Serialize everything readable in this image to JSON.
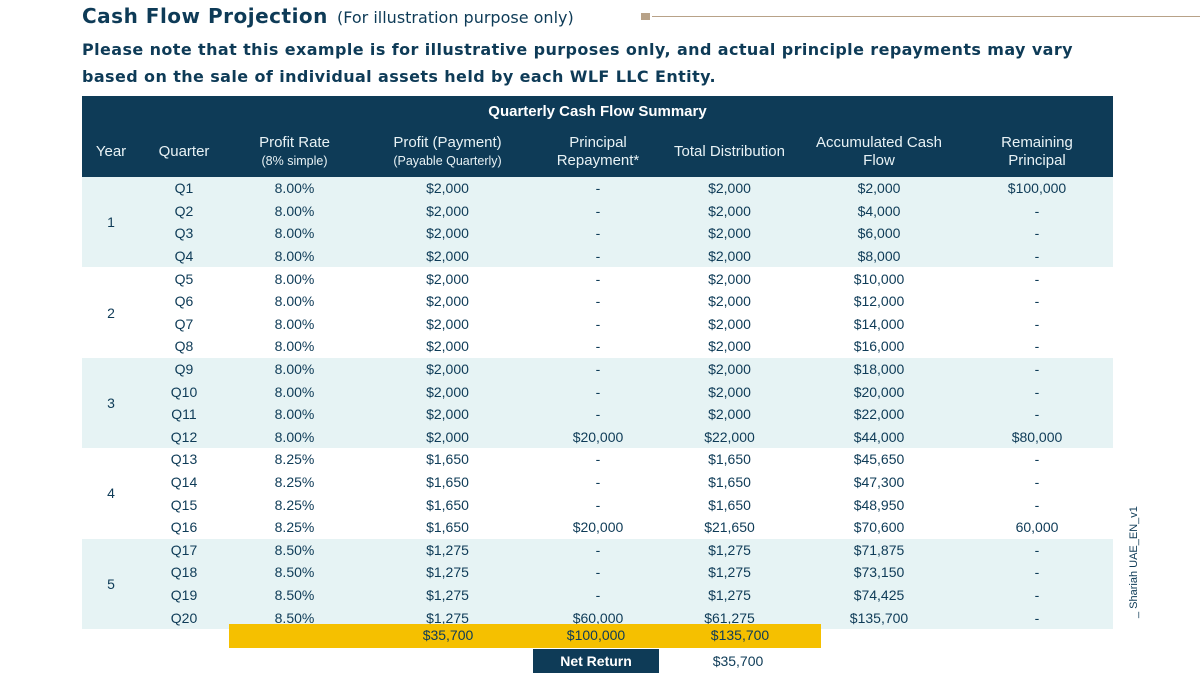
{
  "title": {
    "main": "Cash Flow Projection",
    "sub": "(For illustration purpose only)"
  },
  "note": "Please note that this example is for illustrative purposes only, and actual principle repayments may vary based on the sale of individual assets held by each WLF LLC Entity.",
  "table": {
    "summary_title": "Quarterly Cash Flow Summary",
    "headers": {
      "year": "Year",
      "quarter": "Quarter",
      "profit_rate": "Profit Rate",
      "profit_rate_sub": "(8% simple)",
      "profit_payment": "Profit (Payment)",
      "profit_payment_sub": "(Payable Quarterly)",
      "principal_repayment_1": "Principal",
      "principal_repayment_2": "Repayment*",
      "total_distribution": "Total Distribution",
      "accumulated_1": "Accumulated Cash",
      "accumulated_2": "Flow",
      "remaining_1": "Remaining",
      "remaining_2": "Principal"
    },
    "years": [
      "1",
      "2",
      "3",
      "4",
      "5"
    ],
    "rows": [
      {
        "quarter": "Q1",
        "rate": "8.00%",
        "profit": "$2,000",
        "principal": "-",
        "total": "$2,000",
        "accumulated": "$2,000",
        "remaining": "$100,000"
      },
      {
        "quarter": "Q2",
        "rate": "8.00%",
        "profit": "$2,000",
        "principal": "-",
        "total": "$2,000",
        "accumulated": "$4,000",
        "remaining": "-"
      },
      {
        "quarter": "Q3",
        "rate": "8.00%",
        "profit": "$2,000",
        "principal": "-",
        "total": "$2,000",
        "accumulated": "$6,000",
        "remaining": "-"
      },
      {
        "quarter": "Q4",
        "rate": "8.00%",
        "profit": "$2,000",
        "principal": "-",
        "total": "$2,000",
        "accumulated": "$8,000",
        "remaining": "-"
      },
      {
        "quarter": "Q5",
        "rate": "8.00%",
        "profit": "$2,000",
        "principal": "-",
        "total": "$2,000",
        "accumulated": "$10,000",
        "remaining": "-"
      },
      {
        "quarter": "Q6",
        "rate": "8.00%",
        "profit": "$2,000",
        "principal": "-",
        "total": "$2,000",
        "accumulated": "$12,000",
        "remaining": "-"
      },
      {
        "quarter": "Q7",
        "rate": "8.00%",
        "profit": "$2,000",
        "principal": "-",
        "total": "$2,000",
        "accumulated": "$14,000",
        "remaining": "-"
      },
      {
        "quarter": "Q8",
        "rate": "8.00%",
        "profit": "$2,000",
        "principal": "-",
        "total": "$2,000",
        "accumulated": "$16,000",
        "remaining": "-"
      },
      {
        "quarter": "Q9",
        "rate": "8.00%",
        "profit": "$2,000",
        "principal": "-",
        "total": "$2,000",
        "accumulated": "$18,000",
        "remaining": "-"
      },
      {
        "quarter": "Q10",
        "rate": "8.00%",
        "profit": "$2,000",
        "principal": "-",
        "total": "$2,000",
        "accumulated": "$20,000",
        "remaining": "-"
      },
      {
        "quarter": "Q11",
        "rate": "8.00%",
        "profit": "$2,000",
        "principal": "-",
        "total": "$2,000",
        "accumulated": "$22,000",
        "remaining": "-"
      },
      {
        "quarter": "Q12",
        "rate": "8.00%",
        "profit": "$2,000",
        "principal": "$20,000",
        "total": "$22,000",
        "accumulated": "$44,000",
        "remaining": "$80,000"
      },
      {
        "quarter": "Q13",
        "rate": "8.25%",
        "profit": "$1,650",
        "principal": "-",
        "total": "$1,650",
        "accumulated": "$45,650",
        "remaining": "-"
      },
      {
        "quarter": "Q14",
        "rate": "8.25%",
        "profit": "$1,650",
        "principal": "-",
        "total": "$1,650",
        "accumulated": "$47,300",
        "remaining": "-"
      },
      {
        "quarter": "Q15",
        "rate": "8.25%",
        "profit": "$1,650",
        "principal": "-",
        "total": "$1,650",
        "accumulated": "$48,950",
        "remaining": "-"
      },
      {
        "quarter": "Q16",
        "rate": "8.25%",
        "profit": "$1,650",
        "principal": "$20,000",
        "total": "$21,650",
        "accumulated": "$70,600",
        "remaining": "60,000"
      },
      {
        "quarter": "Q17",
        "rate": "8.50%",
        "profit": "$1,275",
        "principal": "-",
        "total": "$1,275",
        "accumulated": "$71,875",
        "remaining": "-"
      },
      {
        "quarter": "Q18",
        "rate": "8.50%",
        "profit": "$1,275",
        "principal": "-",
        "total": "$1,275",
        "accumulated": "$73,150",
        "remaining": "-"
      },
      {
        "quarter": "Q19",
        "rate": "8.50%",
        "profit": "$1,275",
        "principal": "-",
        "total": "$1,275",
        "accumulated": "$74,425",
        "remaining": "-"
      },
      {
        "quarter": "Q20",
        "rate": "8.50%",
        "profit": "$1,275",
        "principal": "$60,000",
        "total": "$61,275",
        "accumulated": "$135,700",
        "remaining": "-"
      }
    ],
    "totals": {
      "profit": "$35,700",
      "principal": "$100,000",
      "total": "$135,700"
    },
    "net_return": {
      "label": "Net Return",
      "value": "$35,700"
    }
  },
  "side_label": "_ Shariah UAE_EN_v1",
  "colors": {
    "navy": "#0e3b57",
    "row_tint": "#e6f3f4",
    "gold": "#f5c000",
    "rule": "#b8a288"
  }
}
